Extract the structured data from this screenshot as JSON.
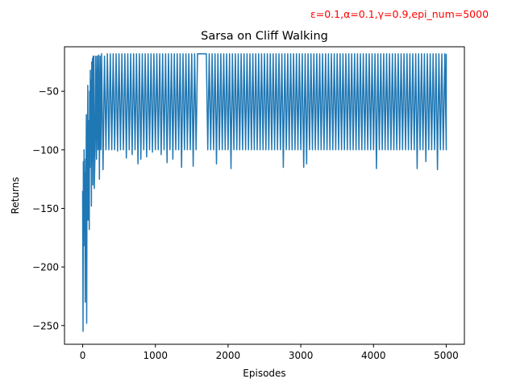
{
  "chart_data": {
    "type": "line",
    "title": "Sarsa on Cliff Walking",
    "annotation": "ε=0.1,α=0.1,γ=0.9,epi_num=5000",
    "annotation_color": "#ff0000",
    "xlabel": "Episodes",
    "ylabel": "Returns",
    "xlim": [
      -250,
      5250
    ],
    "ylim": [
      -266,
      -12
    ],
    "xticks": [
      0,
      1000,
      2000,
      3000,
      4000,
      5000
    ],
    "xtick_labels": [
      "0",
      "1000",
      "2000",
      "3000",
      "4000",
      "5000"
    ],
    "yticks": [
      -250,
      -200,
      -150,
      -100,
      -50
    ],
    "ytick_labels": [
      "−250",
      "−200",
      "−150",
      "−100",
      "−50"
    ],
    "grid": false,
    "series_color": "#1f77b4",
    "series": [
      {
        "points": [
          [
            0,
            -135
          ],
          [
            5,
            -255
          ],
          [
            10,
            -110
          ],
          [
            15,
            -182
          ],
          [
            20,
            -100
          ],
          [
            25,
            -160
          ],
          [
            30,
            -120
          ],
          [
            35,
            -230
          ],
          [
            40,
            -108
          ],
          [
            45,
            -150
          ],
          [
            50,
            -70
          ],
          [
            55,
            -248
          ],
          [
            60,
            -100
          ],
          [
            65,
            -112
          ],
          [
            70,
            -45
          ],
          [
            75,
            -160
          ],
          [
            80,
            -100
          ],
          [
            85,
            -75
          ],
          [
            90,
            -168
          ],
          [
            95,
            -50
          ],
          [
            100,
            -115
          ],
          [
            105,
            -32
          ],
          [
            110,
            -100
          ],
          [
            115,
            -40
          ],
          [
            120,
            -148
          ],
          [
            125,
            -25
          ],
          [
            130,
            -110
          ],
          [
            135,
            -22
          ],
          [
            140,
            -130
          ],
          [
            145,
            -20
          ],
          [
            150,
            -105
          ],
          [
            155,
            -20
          ],
          [
            160,
            -133
          ],
          [
            170,
            -100
          ],
          [
            180,
            -20
          ],
          [
            190,
            -108
          ],
          [
            200,
            -20
          ],
          [
            210,
            -100
          ],
          [
            220,
            -19
          ],
          [
            230,
            -125
          ],
          [
            240,
            -20
          ],
          [
            250,
            -100
          ],
          [
            260,
            -18
          ],
          [
            280,
            -117
          ],
          [
            300,
            -20
          ],
          [
            320,
            -100
          ],
          [
            340,
            -18
          ],
          [
            360,
            -100
          ],
          [
            380,
            -18
          ],
          [
            400,
            -100
          ],
          [
            420,
            -18
          ],
          [
            440,
            -100
          ],
          [
            460,
            -18
          ],
          [
            480,
            -101
          ],
          [
            500,
            -18
          ],
          [
            520,
            -100
          ],
          [
            540,
            -18
          ],
          [
            560,
            -100
          ],
          [
            580,
            -18
          ],
          [
            600,
            -107
          ],
          [
            620,
            -18
          ],
          [
            640,
            -100
          ],
          [
            660,
            -18
          ],
          [
            680,
            -104
          ],
          [
            700,
            -18
          ],
          [
            720,
            -100
          ],
          [
            740,
            -18
          ],
          [
            760,
            -112
          ],
          [
            780,
            -18
          ],
          [
            800,
            -108
          ],
          [
            820,
            -18
          ],
          [
            840,
            -100
          ],
          [
            860,
            -18
          ],
          [
            880,
            -106
          ],
          [
            900,
            -18
          ],
          [
            920,
            -100
          ],
          [
            940,
            -18
          ],
          [
            960,
            -102
          ],
          [
            980,
            -18
          ],
          [
            1000,
            -100
          ],
          [
            1020,
            -18
          ],
          [
            1040,
            -100
          ],
          [
            1060,
            -18
          ],
          [
            1080,
            -104
          ],
          [
            1100,
            -18
          ],
          [
            1120,
            -100
          ],
          [
            1140,
            -18
          ],
          [
            1160,
            -111
          ],
          [
            1180,
            -18
          ],
          [
            1200,
            -100
          ],
          [
            1220,
            -18
          ],
          [
            1240,
            -108
          ],
          [
            1260,
            -18
          ],
          [
            1280,
            -100
          ],
          [
            1300,
            -18
          ],
          [
            1320,
            -100
          ],
          [
            1340,
            -18
          ],
          [
            1360,
            -115
          ],
          [
            1380,
            -18
          ],
          [
            1400,
            -100
          ],
          [
            1420,
            -18
          ],
          [
            1440,
            -100
          ],
          [
            1460,
            -18
          ],
          [
            1480,
            -100
          ],
          [
            1500,
            -18
          ],
          [
            1520,
            -114
          ],
          [
            1540,
            -18
          ],
          [
            1560,
            -100
          ],
          [
            1580,
            -18
          ],
          [
            1620,
            -18
          ],
          [
            1660,
            -18
          ],
          [
            1700,
            -18
          ],
          [
            1720,
            -100
          ],
          [
            1740,
            -18
          ],
          [
            1760,
            -100
          ],
          [
            1780,
            -18
          ],
          [
            1800,
            -100
          ],
          [
            1820,
            -18
          ],
          [
            1840,
            -112
          ],
          [
            1860,
            -18
          ],
          [
            1880,
            -100
          ],
          [
            1900,
            -18
          ],
          [
            1920,
            -100
          ],
          [
            1940,
            -18
          ],
          [
            1960,
            -100
          ],
          [
            1980,
            -18
          ],
          [
            2000,
            -100
          ],
          [
            2020,
            -18
          ],
          [
            2040,
            -116
          ],
          [
            2060,
            -18
          ],
          [
            2080,
            -100
          ],
          [
            2100,
            -18
          ],
          [
            2120,
            -100
          ],
          [
            2140,
            -18
          ],
          [
            2160,
            -100
          ],
          [
            2180,
            -18
          ],
          [
            2200,
            -100
          ],
          [
            2220,
            -18
          ],
          [
            2240,
            -100
          ],
          [
            2260,
            -18
          ],
          [
            2280,
            -100
          ],
          [
            2300,
            -18
          ],
          [
            2320,
            -100
          ],
          [
            2340,
            -18
          ],
          [
            2360,
            -100
          ],
          [
            2380,
            -18
          ],
          [
            2400,
            -100
          ],
          [
            2420,
            -18
          ],
          [
            2440,
            -100
          ],
          [
            2460,
            -18
          ],
          [
            2480,
            -100
          ],
          [
            2500,
            -18
          ],
          [
            2520,
            -100
          ],
          [
            2540,
            -18
          ],
          [
            2560,
            -100
          ],
          [
            2580,
            -18
          ],
          [
            2600,
            -100
          ],
          [
            2620,
            -18
          ],
          [
            2640,
            -100
          ],
          [
            2660,
            -18
          ],
          [
            2680,
            -100
          ],
          [
            2700,
            -18
          ],
          [
            2720,
            -100
          ],
          [
            2740,
            -18
          ],
          [
            2760,
            -115
          ],
          [
            2780,
            -18
          ],
          [
            2800,
            -100
          ],
          [
            2820,
            -18
          ],
          [
            2840,
            -100
          ],
          [
            2860,
            -18
          ],
          [
            2880,
            -100
          ],
          [
            2900,
            -18
          ],
          [
            2920,
            -100
          ],
          [
            2940,
            -18
          ],
          [
            2960,
            -100
          ],
          [
            2980,
            -18
          ],
          [
            3000,
            -100
          ],
          [
            3020,
            -18
          ],
          [
            3040,
            -115
          ],
          [
            3060,
            -18
          ],
          [
            3080,
            -112
          ],
          [
            3100,
            -18
          ],
          [
            3120,
            -100
          ],
          [
            3140,
            -18
          ],
          [
            3160,
            -100
          ],
          [
            3180,
            -18
          ],
          [
            3200,
            -100
          ],
          [
            3220,
            -18
          ],
          [
            3240,
            -100
          ],
          [
            3260,
            -18
          ],
          [
            3280,
            -100
          ],
          [
            3300,
            -18
          ],
          [
            3320,
            -100
          ],
          [
            3340,
            -18
          ],
          [
            3360,
            -100
          ],
          [
            3380,
            -18
          ],
          [
            3400,
            -100
          ],
          [
            3420,
            -18
          ],
          [
            3440,
            -100
          ],
          [
            3460,
            -18
          ],
          [
            3480,
            -100
          ],
          [
            3500,
            -18
          ],
          [
            3520,
            -100
          ],
          [
            3540,
            -18
          ],
          [
            3560,
            -100
          ],
          [
            3580,
            -18
          ],
          [
            3600,
            -100
          ],
          [
            3620,
            -18
          ],
          [
            3640,
            -100
          ],
          [
            3660,
            -18
          ],
          [
            3680,
            -100
          ],
          [
            3700,
            -18
          ],
          [
            3720,
            -100
          ],
          [
            3740,
            -18
          ],
          [
            3760,
            -100
          ],
          [
            3780,
            -18
          ],
          [
            3800,
            -100
          ],
          [
            3820,
            -18
          ],
          [
            3840,
            -100
          ],
          [
            3860,
            -18
          ],
          [
            3880,
            -100
          ],
          [
            3900,
            -18
          ],
          [
            3920,
            -100
          ],
          [
            3940,
            -18
          ],
          [
            3960,
            -100
          ],
          [
            3980,
            -18
          ],
          [
            4000,
            -100
          ],
          [
            4020,
            -18
          ],
          [
            4040,
            -116
          ],
          [
            4060,
            -18
          ],
          [
            4080,
            -100
          ],
          [
            4100,
            -18
          ],
          [
            4120,
            -100
          ],
          [
            4140,
            -18
          ],
          [
            4160,
            -100
          ],
          [
            4180,
            -18
          ],
          [
            4200,
            -100
          ],
          [
            4220,
            -18
          ],
          [
            4240,
            -100
          ],
          [
            4260,
            -18
          ],
          [
            4280,
            -100
          ],
          [
            4300,
            -18
          ],
          [
            4320,
            -100
          ],
          [
            4340,
            -18
          ],
          [
            4360,
            -100
          ],
          [
            4380,
            -18
          ],
          [
            4400,
            -100
          ],
          [
            4420,
            -18
          ],
          [
            4440,
            -100
          ],
          [
            4460,
            -18
          ],
          [
            4480,
            -100
          ],
          [
            4500,
            -18
          ],
          [
            4520,
            -100
          ],
          [
            4540,
            -18
          ],
          [
            4560,
            -100
          ],
          [
            4580,
            -18
          ],
          [
            4600,
            -116
          ],
          [
            4620,
            -18
          ],
          [
            4640,
            -100
          ],
          [
            4660,
            -18
          ],
          [
            4680,
            -100
          ],
          [
            4700,
            -18
          ],
          [
            4720,
            -110
          ],
          [
            4740,
            -18
          ],
          [
            4760,
            -100
          ],
          [
            4780,
            -18
          ],
          [
            4800,
            -100
          ],
          [
            4820,
            -18
          ],
          [
            4840,
            -100
          ],
          [
            4860,
            -18
          ],
          [
            4880,
            -117
          ],
          [
            4900,
            -18
          ],
          [
            4920,
            -100
          ],
          [
            4940,
            -18
          ],
          [
            4960,
            -100
          ],
          [
            4980,
            -18
          ],
          [
            5000,
            -100
          ],
          [
            5000,
            -18
          ]
        ]
      }
    ]
  }
}
